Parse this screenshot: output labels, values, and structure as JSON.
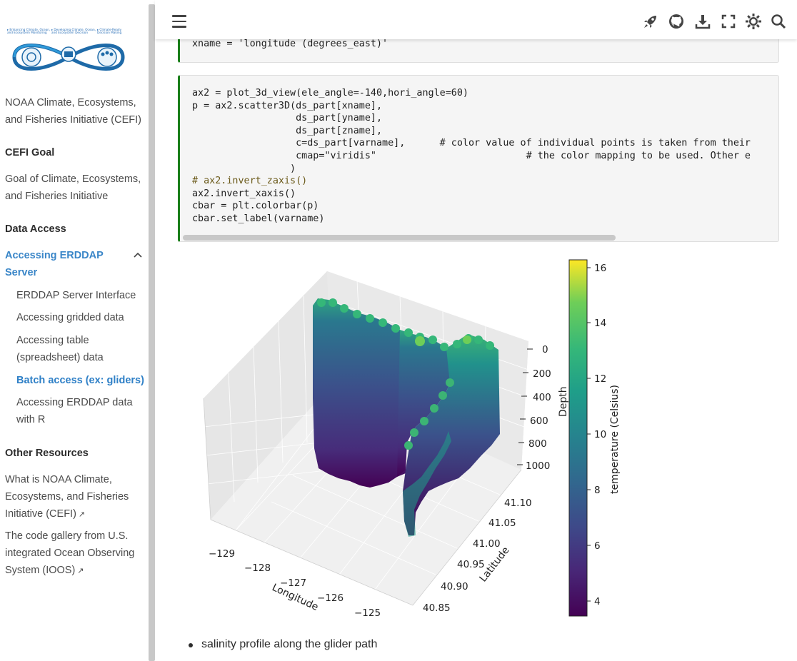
{
  "sidebar": {
    "logo_text": [
      "Enhancing Climate, Oceans, and Ecosystem Monitoring",
      "Developing Climate, Ocean, and Ecosystem Decision Support Systems",
      "Climate-Ready Decision Making"
    ],
    "initiative_title": "NOAA Climate, Ecosystems, and Fisheries Initiative (CEFI)",
    "goal_heading": "CEFI Goal",
    "goal_text": "Goal of Climate, Ecosystems, and Fisheries Initiative",
    "data_access_heading": "Data Access",
    "active_section": "Accessing ERDDAP Server",
    "sub_items": [
      "ERDDAP Server Interface",
      "Accessing gridded data",
      "Accessing table (spreadsheet) data",
      "Batch access (ex: gliders)",
      "Accessing ERDDAP data with R"
    ],
    "other_heading": "Other Resources",
    "other_items": [
      "What is NOAA Climate, Ecosystems, and Fisheries Initiative (CEFI)",
      "The code gallery from U.S. integrated Ocean Observing System (IOOS)"
    ]
  },
  "header": {
    "icons": [
      "menu-icon",
      "rocket-icon",
      "github-icon",
      "download-icon",
      "fullscreen-icon",
      "theme-icon",
      "search-icon"
    ]
  },
  "code_cell_1": {
    "line": "xname = 'longitude (degrees_east)'"
  },
  "code_cell_2": {
    "lines": [
      "ax2 = plot_3d_view(ele_angle=-140,hori_angle=60)",
      "p = ax2.scatter3D(ds_part[xname],",
      "                  ds_part[yname],",
      "                  ds_part[zname],",
      "                  c=ds_part[varname],      # color value of individual points is taken from their",
      "                  cmap=\"viridis\"                          # the color mapping to be used. Other e",
      "                 )",
      "# ax2.invert_zaxis()",
      "ax2.invert_xaxis()",
      "cbar = plt.colorbar(p)",
      "cbar.set_label(varname)"
    ]
  },
  "chart_data": {
    "type": "scatter",
    "xlabel": "Longitude",
    "ylabel": "Latitude",
    "zlabel": "Depth",
    "x_ticks": [
      "−129",
      "−128",
      "−127",
      "−126",
      "−125"
    ],
    "y_ticks": [
      "40.85",
      "40.90",
      "40.95",
      "41.00",
      "41.05",
      "41.10"
    ],
    "z_ticks": [
      "0",
      "200",
      "400",
      "600",
      "800",
      "1000"
    ],
    "colorbar_label": "temperature (Celsius)",
    "colorbar_ticks": [
      "4",
      "6",
      "8",
      "10",
      "12",
      "14",
      "16"
    ],
    "colormap": "viridis",
    "clim": [
      3.3,
      16.4
    ],
    "zlim": [
      0,
      1000
    ]
  },
  "bullet_text": "salinity profile along the glider path"
}
